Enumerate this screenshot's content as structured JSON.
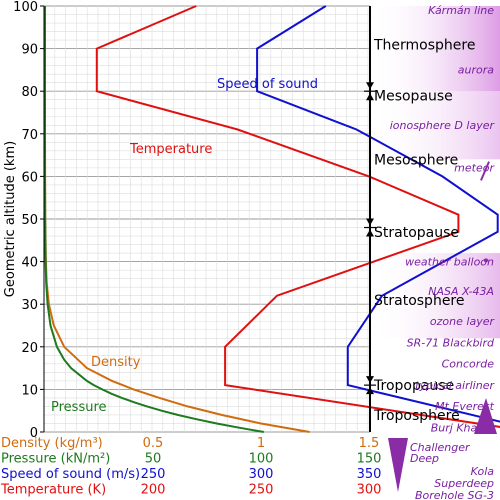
{
  "chart_data": {
    "type": "line",
    "ylabel": "Geometric altitude (km)",
    "y_ticks": [
      0,
      10,
      20,
      30,
      40,
      50,
      60,
      70,
      80,
      90,
      100
    ],
    "ylim": [
      0,
      100
    ],
    "grid": true,
    "axis_rows": [
      {
        "label": "Density (kg/m³)",
        "ticks": [
          "0.5",
          "1",
          "1.5"
        ],
        "values": [
          0.5,
          1,
          1.5
        ],
        "color": "#d06c0e"
      },
      {
        "label": "Pressure (kN/m²)",
        "ticks": [
          "50",
          "100",
          "150"
        ],
        "values": [
          50,
          100,
          150
        ],
        "color": "#1d7a1d"
      },
      {
        "label": "Speed of sound (m/s)",
        "ticks": [
          "250",
          "300",
          "350"
        ],
        "values": [
          250,
          300,
          350
        ],
        "color": "#1010d0"
      },
      {
        "label": "Temperature (K)",
        "ticks": [
          "200",
          "250",
          "300"
        ],
        "values": [
          200,
          250,
          300
        ],
        "color": "#e01010"
      }
    ],
    "series": [
      {
        "name": "Temperature",
        "color": "#e01010",
        "points": [
          [
            288,
            0
          ],
          [
            216.7,
            11
          ],
          [
            216.7,
            20
          ],
          [
            228.7,
            32
          ],
          [
            270.7,
            47
          ],
          [
            270.7,
            51
          ],
          [
            250,
            60
          ],
          [
            219.6,
            71
          ],
          [
            187,
            80
          ],
          [
            187,
            90
          ],
          [
            210,
            100
          ]
        ]
      },
      {
        "name": "Speed of sound",
        "color": "#1010d0",
        "points": [
          [
            340.3,
            0
          ],
          [
            295.1,
            11
          ],
          [
            295.1,
            20
          ],
          [
            303,
            32
          ],
          [
            329.8,
            47
          ],
          [
            329.8,
            51
          ],
          [
            317,
            60
          ],
          [
            297.1,
            71
          ],
          [
            274.1,
            80
          ],
          [
            274.1,
            90
          ],
          [
            290,
            100
          ]
        ]
      },
      {
        "name": "Density",
        "color": "#d06c0e",
        "points": [
          [
            1.225,
            0
          ],
          [
            1.0,
            2
          ],
          [
            0.82,
            4
          ],
          [
            0.66,
            6
          ],
          [
            0.53,
            8
          ],
          [
            0.41,
            10
          ],
          [
            0.31,
            12
          ],
          [
            0.194,
            15
          ],
          [
            0.0889,
            20
          ],
          [
            0.0408,
            25
          ],
          [
            0.018,
            30
          ],
          [
            0.008,
            35
          ],
          [
            0.004,
            40
          ],
          [
            0.001,
            50
          ],
          [
            0.0003,
            60
          ],
          [
            0,
            70
          ],
          [
            0,
            100
          ]
        ]
      },
      {
        "name": "Pressure",
        "color": "#1d7a1d",
        "points": [
          [
            101.3,
            0
          ],
          [
            89.9,
            1
          ],
          [
            79.5,
            2
          ],
          [
            70.1,
            3
          ],
          [
            61.6,
            4
          ],
          [
            54.0,
            5
          ],
          [
            47.2,
            6
          ],
          [
            41.1,
            7
          ],
          [
            35.6,
            8
          ],
          [
            30.7,
            9
          ],
          [
            26.5,
            10
          ],
          [
            22.6,
            11
          ],
          [
            19.4,
            12
          ],
          [
            12.1,
            15
          ],
          [
            8.85,
            17
          ],
          [
            5.53,
            20
          ],
          [
            2.55,
            25
          ],
          [
            1.2,
            30
          ],
          [
            0.57,
            35
          ],
          [
            0.29,
            40
          ],
          [
            0.08,
            50
          ],
          [
            0.02,
            60
          ],
          [
            0,
            70
          ],
          [
            0,
            100
          ]
        ]
      }
    ],
    "layers": [
      {
        "label": "Thermosphere",
        "altitude": 91
      },
      {
        "label": "Mesopause",
        "altitude": 79
      },
      {
        "label": "Mesosphere",
        "altitude": 64
      },
      {
        "label": "Stratopause",
        "altitude": 47
      },
      {
        "label": "Stratosphere",
        "altitude": 31
      },
      {
        "label": "Tropopause",
        "altitude": 11
      },
      {
        "label": "Troposphere",
        "altitude": 4
      }
    ],
    "boundaries": [
      80,
      48,
      11
    ],
    "objects": [
      {
        "label": "Kármán line",
        "altitude": 100
      },
      {
        "label": "aurora",
        "altitude": 86
      },
      {
        "label": "ionosphere D layer",
        "altitude": 73
      },
      {
        "label": "meteor",
        "altitude": 63
      },
      {
        "label": "weather balloon",
        "altitude": 41
      },
      {
        "label": "NASA X-43A",
        "altitude": 34
      },
      {
        "label": "ozone layer",
        "altitude": 27
      },
      {
        "label": "SR-71 Blackbird",
        "altitude": 22
      },
      {
        "label": "Concorde",
        "altitude": 17
      },
      {
        "label": "typical airliner",
        "altitude": 12
      },
      {
        "label": "Mt Everest",
        "altitude": 7
      },
      {
        "label": "Burj Khalifa",
        "altitude": 2
      },
      {
        "label": "Challenger Deep",
        "altitude": -3
      },
      {
        "label": "Kola Superdeep Borehole SG-3",
        "altitude": -10
      }
    ]
  }
}
